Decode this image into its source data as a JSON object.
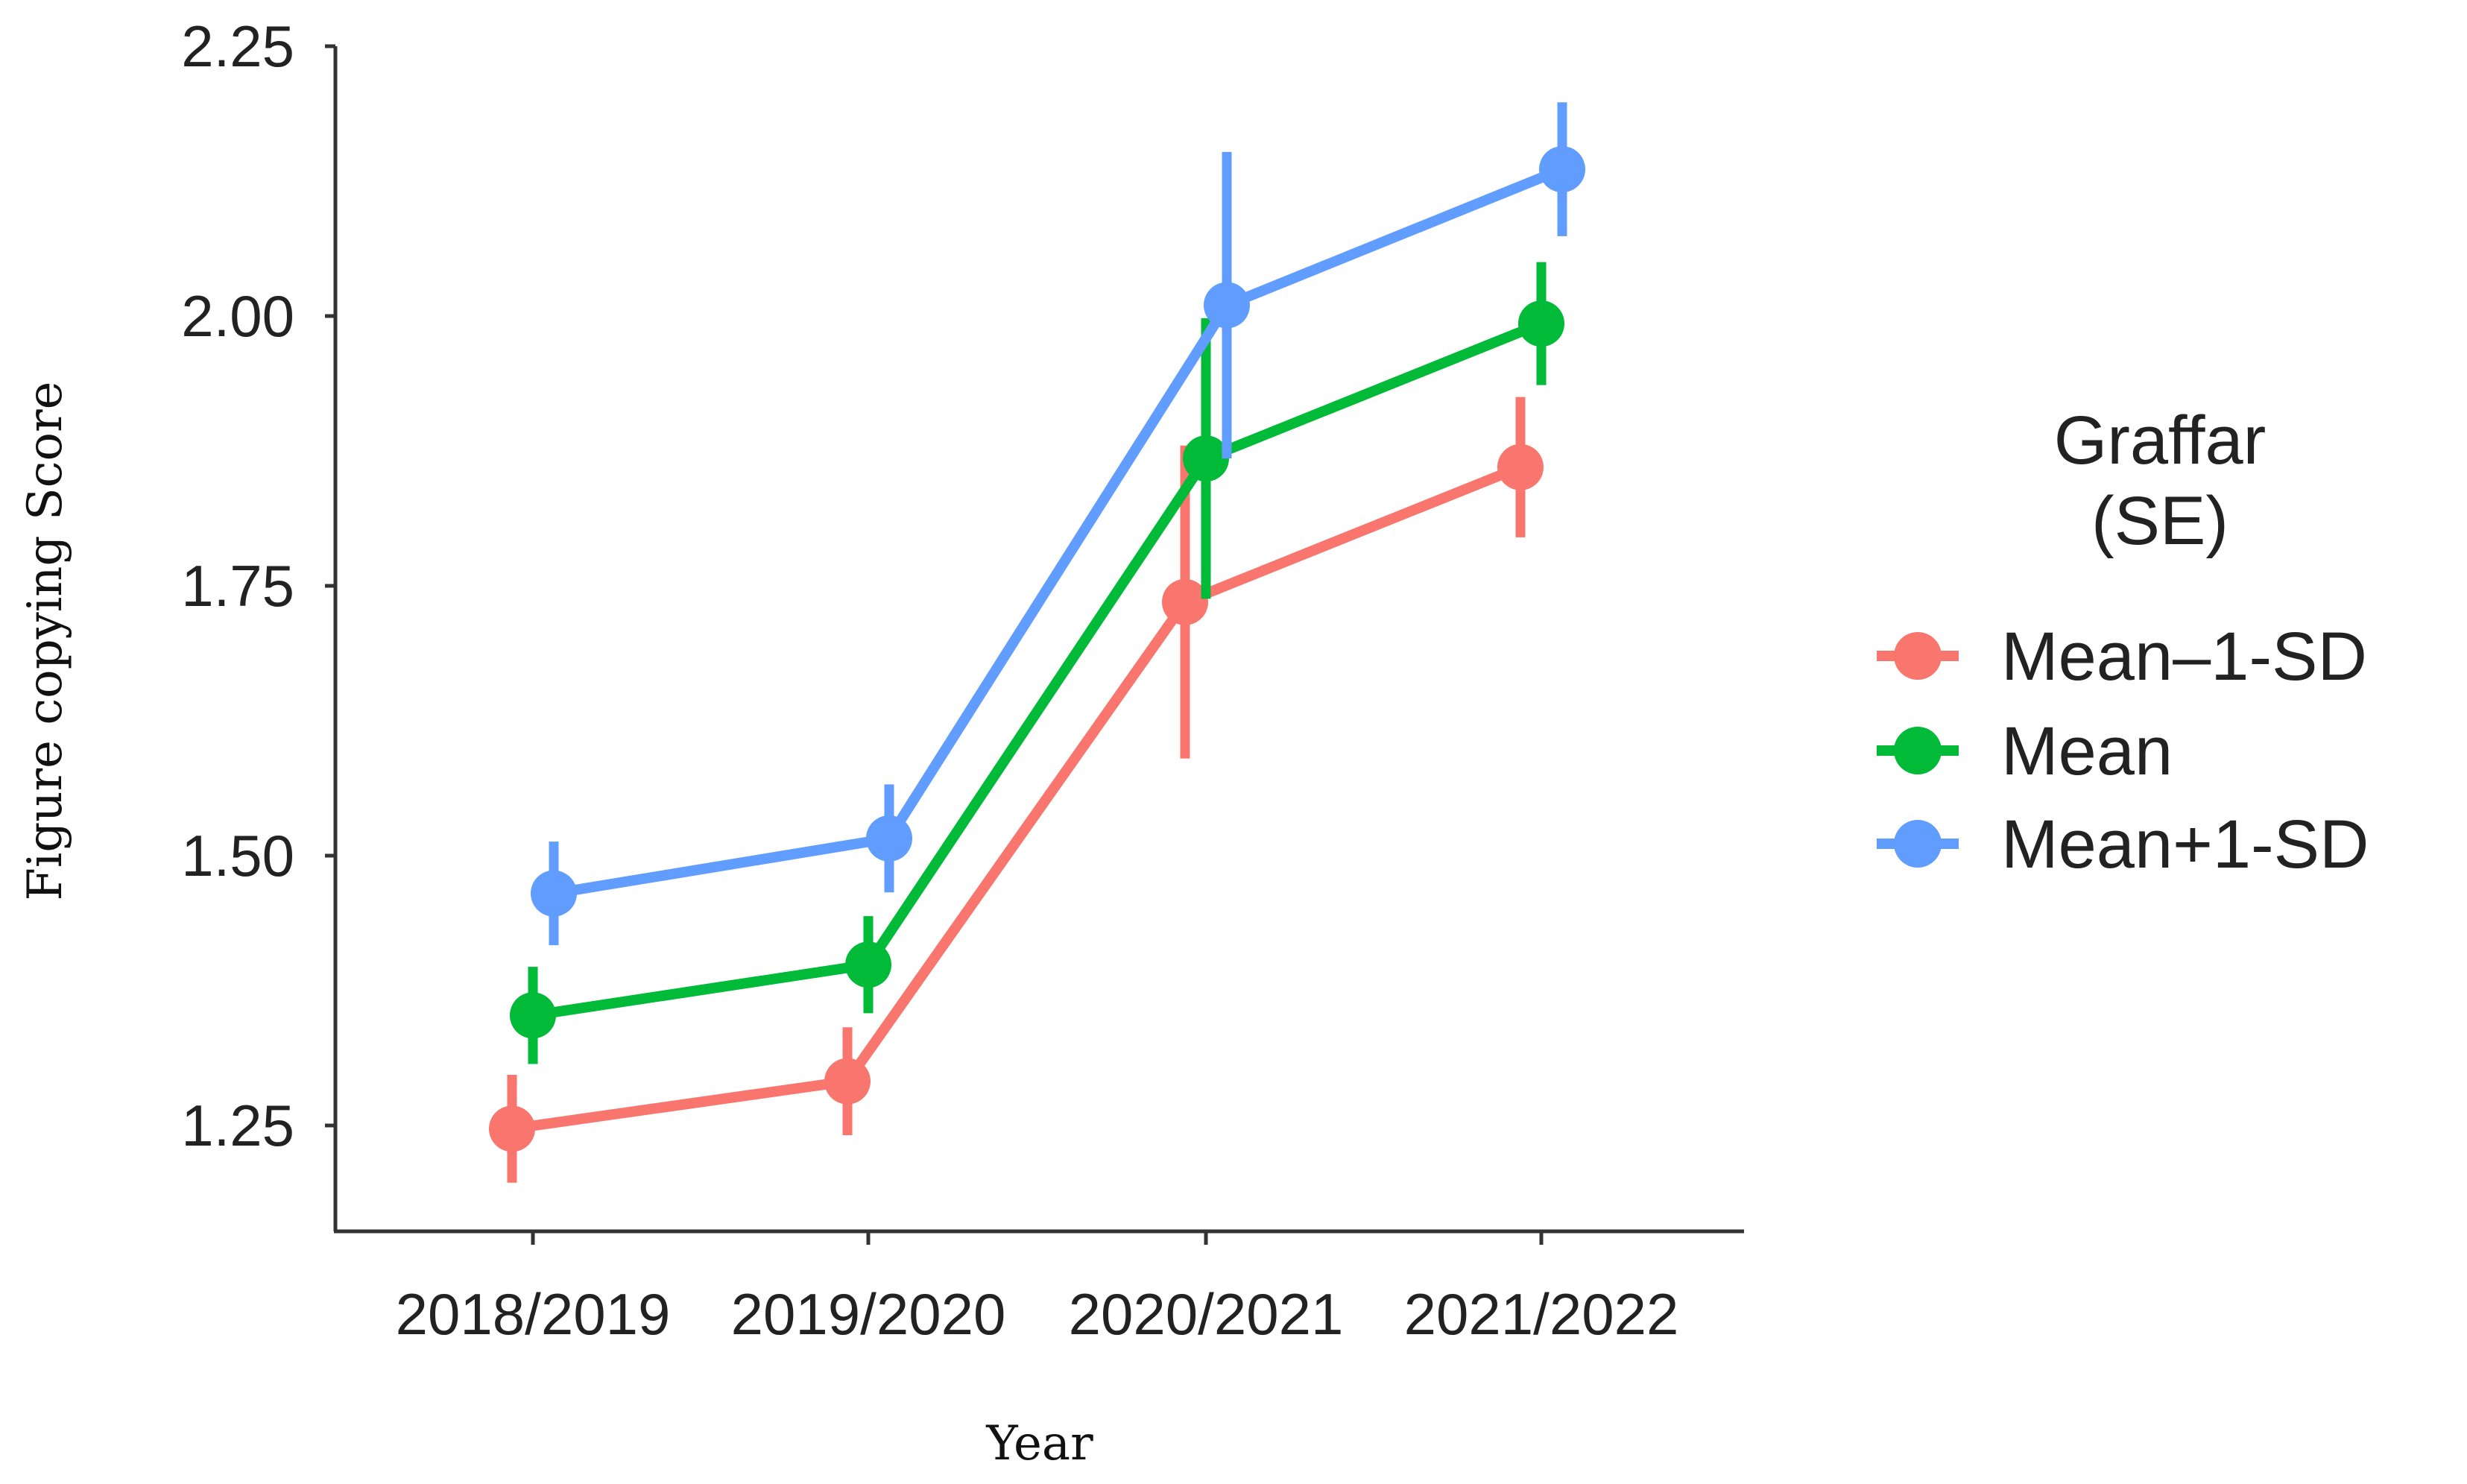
{
  "chart_data": {
    "type": "line",
    "xlabel": "Year",
    "ylabel": "Figure copying Score",
    "categories": [
      "2018/2019",
      "2019/2020",
      "2020/2021",
      "2021/2022"
    ],
    "ylim": [
      1.15,
      2.25
    ],
    "yticks": [
      "1.25",
      "1.50",
      "1.75",
      "2.00",
      "2.25"
    ],
    "grid": false,
    "legend": {
      "title_line1": "Graffar",
      "title_line2": "(SE)",
      "position": "right"
    },
    "series": [
      {
        "name": "Mean–1-SD",
        "color": "#F8766D",
        "values": [
          1.247,
          1.291,
          1.735,
          1.86
        ],
        "errors": [
          0.05,
          0.05,
          0.145,
          0.065
        ]
      },
      {
        "name": "Mean",
        "color": "#00BA38",
        "values": [
          1.352,
          1.399,
          1.868,
          1.993
        ],
        "errors": [
          0.045,
          0.045,
          0.13,
          0.057
        ]
      },
      {
        "name": "Mean+1-SD",
        "color": "#619CFF",
        "values": [
          1.465,
          1.516,
          2.01,
          2.136
        ],
        "errors": [
          0.048,
          0.05,
          0.142,
          0.062
        ]
      }
    ]
  }
}
